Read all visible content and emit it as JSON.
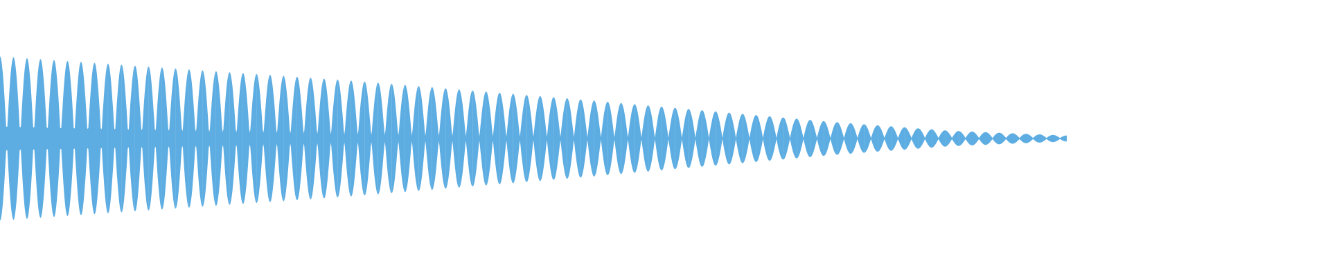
{
  "chart_data": {
    "type": "area",
    "title": "",
    "xlabel": "",
    "ylabel": "",
    "axes_visible": false,
    "grid": false,
    "color": "#5DADE2",
    "background": "#ffffff",
    "beat_count": 79,
    "ylim": [
      -1,
      1
    ],
    "envelope_peak_amplitude": [
      1.0,
      0.9,
      0.8,
      0.7,
      0.58,
      0.46,
      0.33,
      0.2,
      0.09,
      0.03
    ],
    "carrier_floor_amplitude": [
      0.14,
      0.1,
      0.07,
      0.04,
      0.02,
      0.01,
      0.0,
      0.0,
      0.0,
      0.0
    ]
  }
}
